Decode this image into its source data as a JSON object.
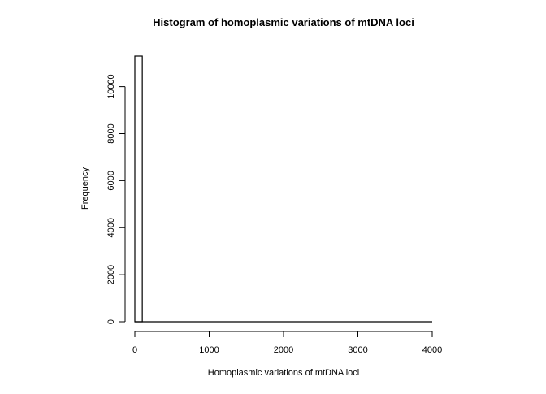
{
  "chart_data": {
    "type": "bar",
    "title": "Histogram of homoplasmic variations of mtDNA loci",
    "xlabel": "Homoplasmic variations of mtDNA loci",
    "ylabel": "Frequency",
    "bins": [
      {
        "x0": 0,
        "x1": 100,
        "count": 11300
      }
    ],
    "xlim": [
      0,
      4000
    ],
    "ylim": [
      0,
      11300
    ],
    "x_ticks": [
      0,
      1000,
      2000,
      3000,
      4000
    ],
    "y_ticks": [
      0,
      2000,
      4000,
      6000,
      8000,
      10000
    ],
    "grid": false,
    "legend": "none",
    "colors": {
      "bar_fill": "#ffffff",
      "bar_stroke": "#000000",
      "axis": "#000000"
    }
  }
}
